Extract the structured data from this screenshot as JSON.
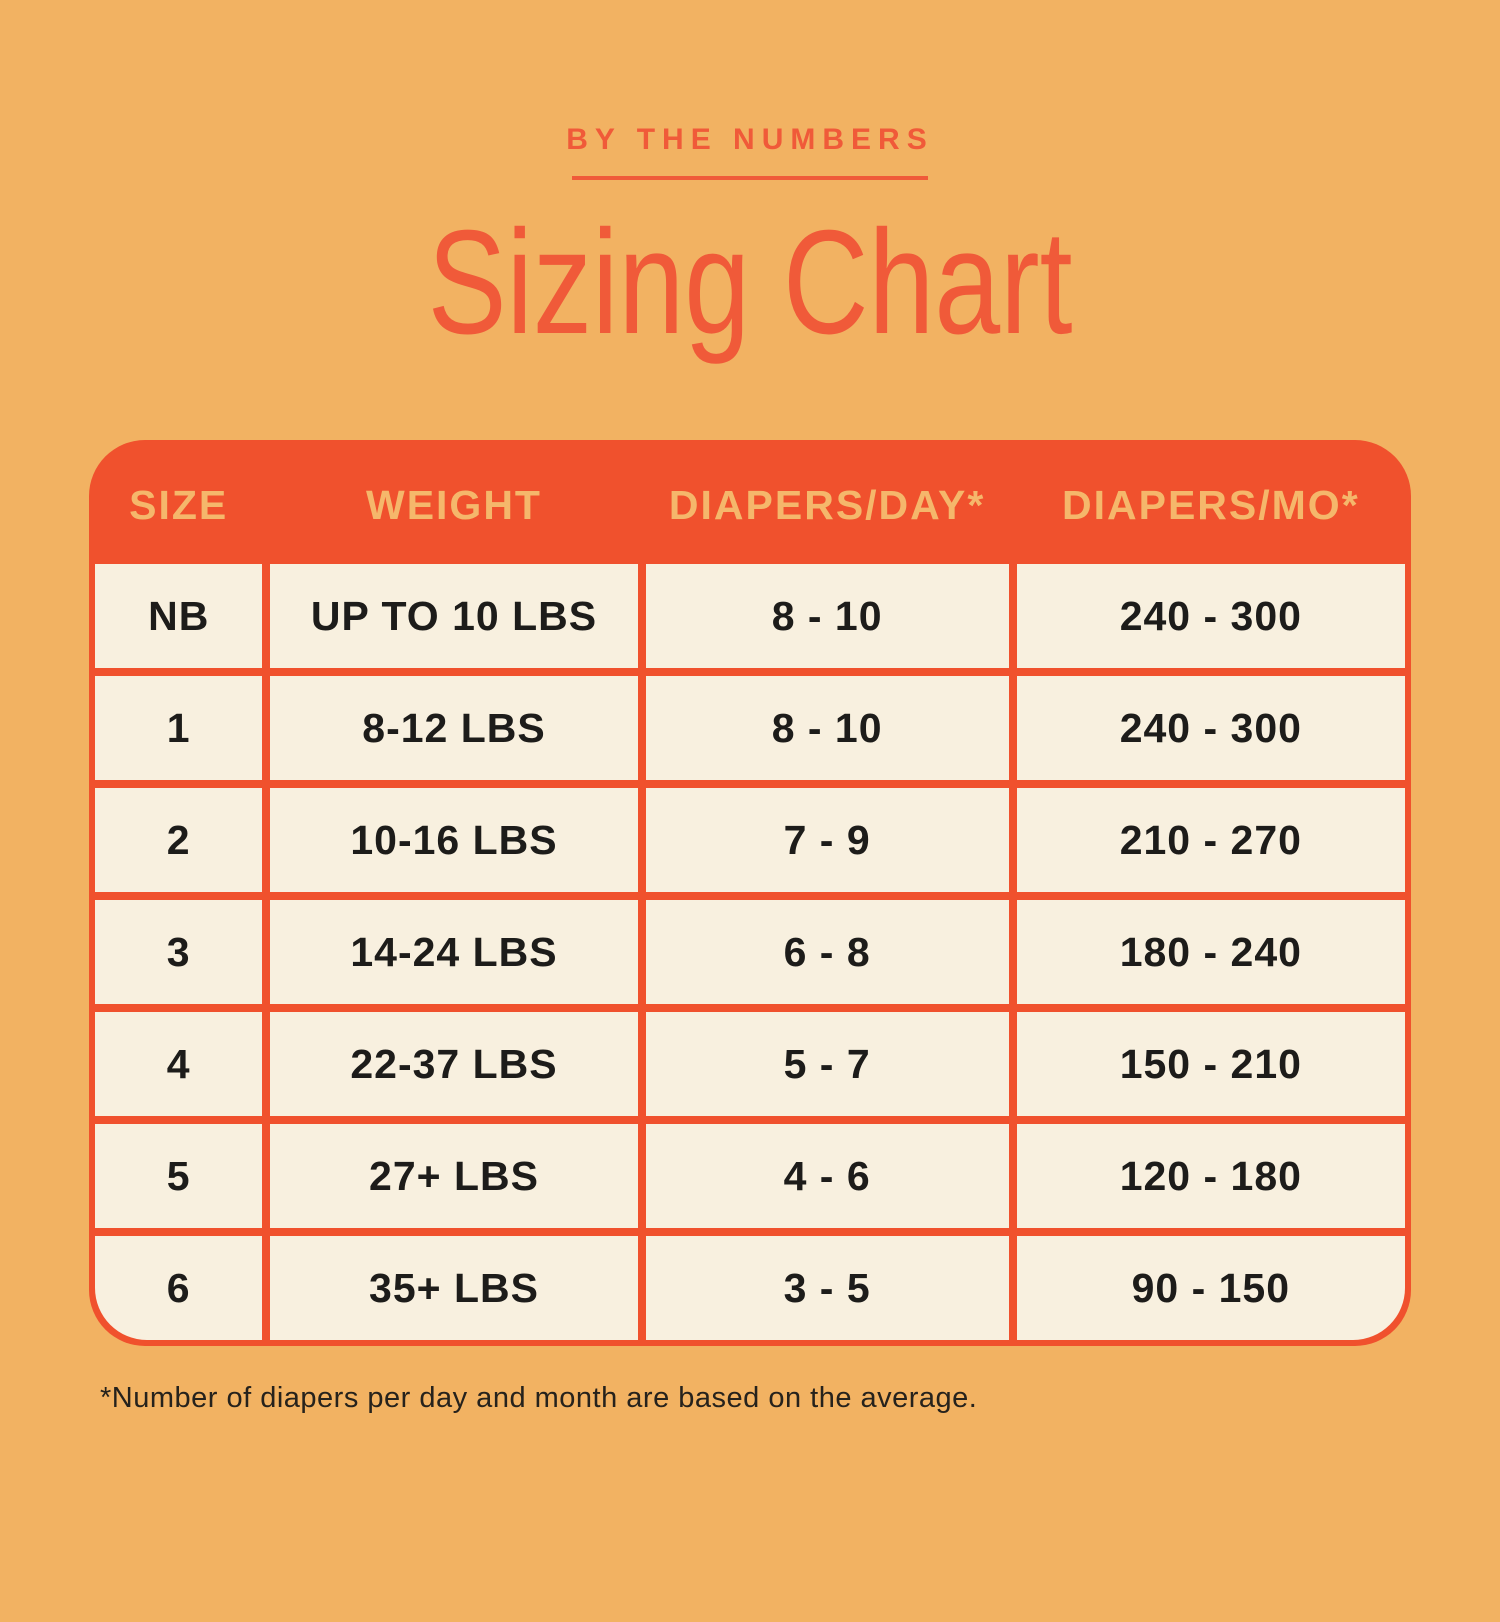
{
  "page": {
    "background_color": "#F2B262",
    "accent_red": "#F0512D",
    "title_red": "#F05A39",
    "gold": "#F5B76B",
    "cream": "#F8F0DF",
    "text_dark": "#1D1C1A"
  },
  "header": {
    "eyebrow": "BY THE NUMBERS",
    "title": "Sizing Chart"
  },
  "chart_data": {
    "type": "table",
    "subtitle": "BY THE NUMBERS",
    "title": "Sizing Chart",
    "columns": [
      "SIZE",
      "WEIGHT",
      "DIAPERS/DAY*",
      "DIAPERS/MO*"
    ],
    "rows": [
      [
        "NB",
        "UP TO 10 LBS",
        "8 - 10",
        "240 - 300"
      ],
      [
        "1",
        "8-12 LBS",
        "8 - 10",
        "240 - 300"
      ],
      [
        "2",
        "10-16 LBS",
        "7 - 9",
        "210 - 270"
      ],
      [
        "3",
        "14-24 LBS",
        "6 - 8",
        "180 - 240"
      ],
      [
        "4",
        "22-37 LBS",
        "5 - 7",
        "150 - 210"
      ],
      [
        "5",
        "27+ LBS",
        "4 - 6",
        "120 - 180"
      ],
      [
        "6",
        "35+ LBS",
        "3 - 5",
        "90 - 150"
      ]
    ],
    "footnote": "*Number of diapers per day and month are based on the average."
  }
}
